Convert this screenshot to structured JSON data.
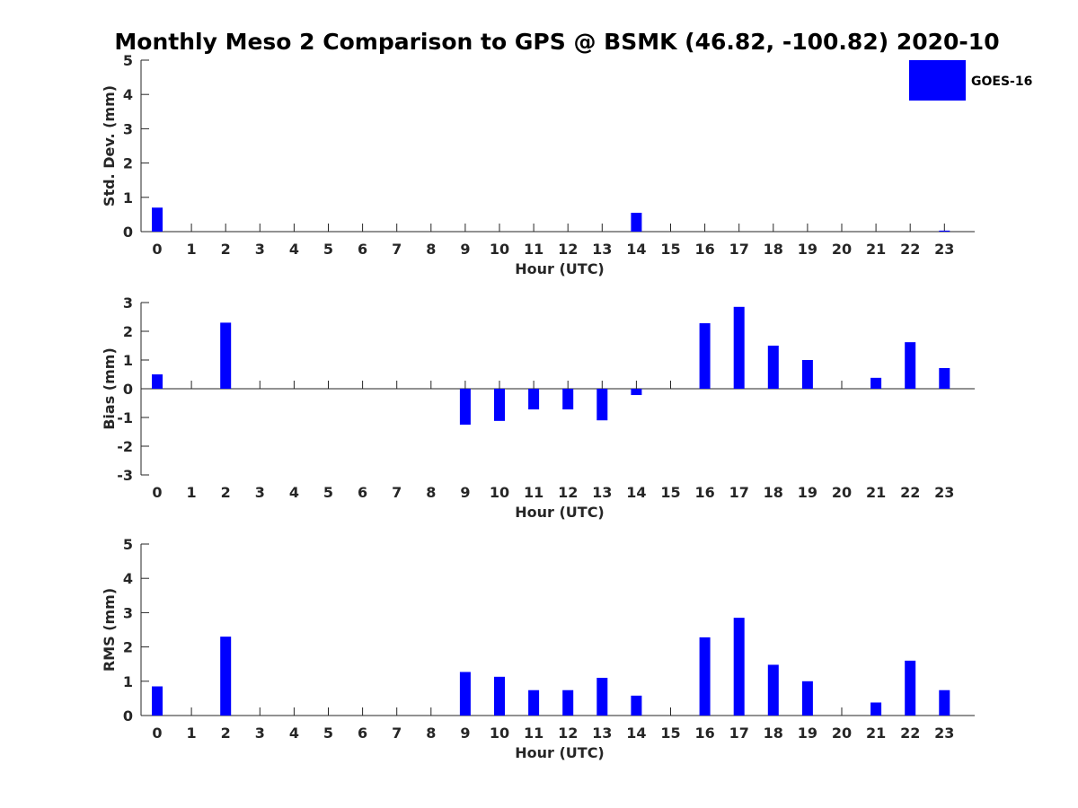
{
  "title": "Monthly Meso 2 Comparison to GPS @ BSMK (46.82, -100.82) 2020-10",
  "legend": {
    "label": "GOES-16",
    "color": "#0000ff",
    "placement": "top-right"
  },
  "bar_color": "#0000ff",
  "chart_data": [
    {
      "type": "bar",
      "ylabel": "Std. Dev. (mm)",
      "xlabel": "Hour (UTC)",
      "ylim": [
        0,
        5
      ],
      "yticks": [
        0,
        1,
        2,
        3,
        4,
        5
      ],
      "categories": [
        "0",
        "1",
        "2",
        "3",
        "4",
        "5",
        "6",
        "7",
        "8",
        "9",
        "10",
        "11",
        "12",
        "13",
        "14",
        "15",
        "16",
        "17",
        "18",
        "19",
        "20",
        "21",
        "22",
        "23"
      ],
      "series": [
        {
          "name": "GOES-16",
          "values": [
            0.7,
            null,
            null,
            null,
            null,
            null,
            null,
            null,
            null,
            null,
            null,
            null,
            null,
            null,
            0.55,
            null,
            null,
            null,
            null,
            null,
            null,
            null,
            null,
            0.03
          ]
        }
      ]
    },
    {
      "type": "bar",
      "ylabel": "Bias (mm)",
      "xlabel": "Hour (UTC)",
      "ylim": [
        -3,
        3
      ],
      "yticks": [
        -3,
        -2,
        -1,
        0,
        1,
        2,
        3
      ],
      "categories": [
        "0",
        "1",
        "2",
        "3",
        "4",
        "5",
        "6",
        "7",
        "8",
        "9",
        "10",
        "11",
        "12",
        "13",
        "14",
        "15",
        "16",
        "17",
        "18",
        "19",
        "20",
        "21",
        "22",
        "23"
      ],
      "series": [
        {
          "name": "GOES-16",
          "values": [
            0.5,
            null,
            2.3,
            null,
            null,
            null,
            null,
            null,
            null,
            -1.25,
            -1.12,
            -0.72,
            -0.72,
            -1.1,
            -0.22,
            null,
            2.28,
            2.85,
            1.5,
            1.0,
            null,
            0.38,
            1.62,
            0.72
          ]
        }
      ]
    },
    {
      "type": "bar",
      "ylabel": "RMS (mm)",
      "xlabel": "Hour (UTC)",
      "ylim": [
        0,
        5
      ],
      "yticks": [
        0,
        1,
        2,
        3,
        4,
        5
      ],
      "categories": [
        "0",
        "1",
        "2",
        "3",
        "4",
        "5",
        "6",
        "7",
        "8",
        "9",
        "10",
        "11",
        "12",
        "13",
        "14",
        "15",
        "16",
        "17",
        "18",
        "19",
        "20",
        "21",
        "22",
        "23"
      ],
      "series": [
        {
          "name": "GOES-16",
          "values": [
            0.85,
            null,
            2.3,
            null,
            null,
            null,
            null,
            null,
            null,
            1.27,
            1.13,
            0.74,
            0.74,
            1.1,
            0.58,
            null,
            2.28,
            2.85,
            1.48,
            1.0,
            null,
            0.38,
            1.6,
            0.74
          ]
        }
      ]
    }
  ]
}
